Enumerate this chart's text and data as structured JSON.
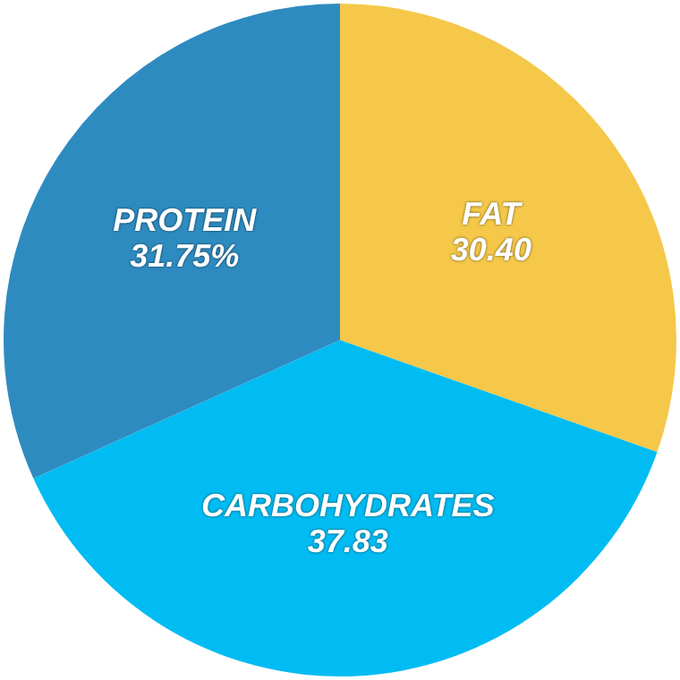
{
  "chart_data": {
    "type": "pie",
    "categories": [
      "FAT",
      "CARBOHYDRATES",
      "PROTEIN"
    ],
    "values": [
      30.4,
      37.83,
      31.75
    ],
    "value_labels": [
      "30.40",
      "37.83",
      "31.75%"
    ],
    "colors": [
      "#f5c84a",
      "#00bcf2",
      "#2e8bc0"
    ]
  }
}
